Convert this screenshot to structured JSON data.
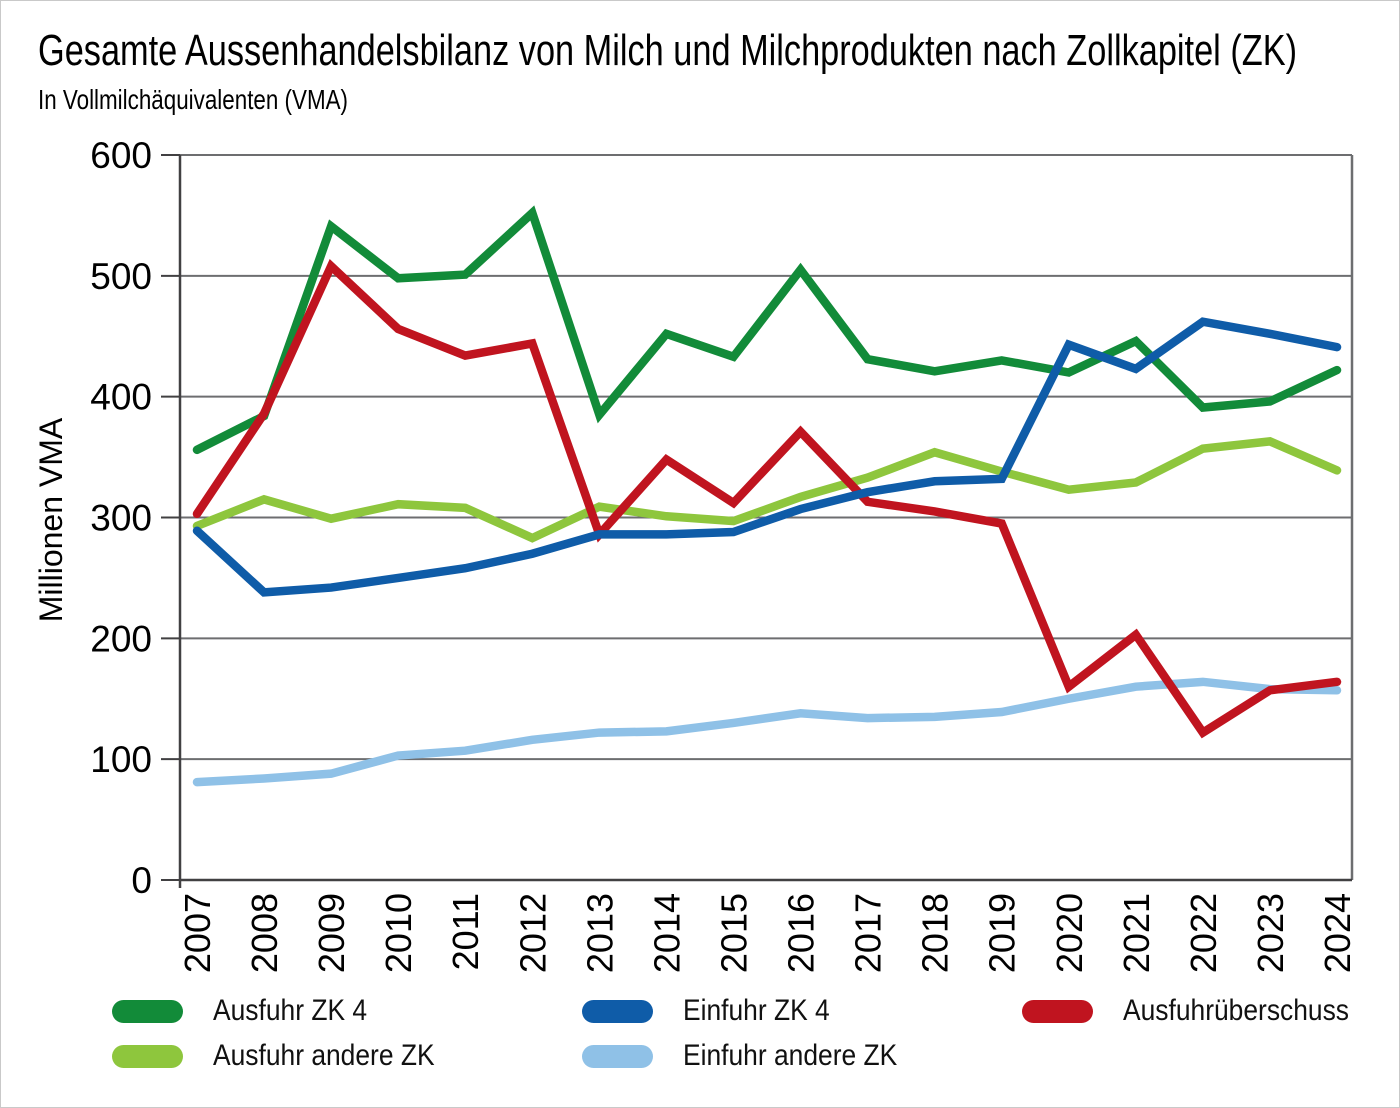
{
  "chart_data": {
    "type": "line",
    "title": "Gesamte Aussenhandelsbilanz von Milch und Milchprodukten nach Zollkapitel (ZK)",
    "subtitle": "In Vollmilchäquivalenten (VMA)",
    "ylabel": "Millionen VMA",
    "xlabel": "",
    "ylim": [
      0,
      600
    ],
    "yticks": [
      0,
      100,
      200,
      300,
      400,
      500,
      600
    ],
    "grid": true,
    "legend_position": "bottom",
    "x": [
      "2007",
      "2008",
      "2009",
      "2010",
      "2011",
      "2012",
      "2013",
      "2014",
      "2015",
      "2016",
      "2017",
      "2018",
      "2019",
      "2020",
      "2021",
      "2022",
      "2023",
      "2024"
    ],
    "series": [
      {
        "name": "Ausfuhr ZK 4",
        "color": "#128b39",
        "values": [
          356,
          384,
          541,
          498,
          501,
          552,
          385,
          452,
          433,
          505,
          431,
          421,
          430,
          420,
          446,
          391,
          396,
          422
        ]
      },
      {
        "name": "Ausfuhr andere ZK",
        "color": "#8ec63d",
        "values": [
          293,
          315,
          299,
          311,
          308,
          283,
          309,
          301,
          297,
          317,
          333,
          354,
          338,
          323,
          329,
          357,
          363,
          339
        ]
      },
      {
        "name": "Einfuhr ZK 4",
        "color": "#0f5ca8",
        "values": [
          289,
          238,
          242,
          250,
          258,
          270,
          286,
          286,
          288,
          307,
          321,
          330,
          332,
          443,
          423,
          462,
          452,
          441
        ]
      },
      {
        "name": "Einfuhr andere ZK",
        "color": "#8fc1e7",
        "values": [
          81,
          84,
          88,
          103,
          107,
          116,
          122,
          123,
          130,
          138,
          134,
          135,
          139,
          150,
          160,
          164,
          158,
          157
        ]
      },
      {
        "name": "Ausfuhrüberschuss",
        "color": "#c0141f",
        "values": [
          303,
          386,
          508,
          456,
          434,
          444,
          286,
          348,
          312,
          371,
          313,
          305,
          295,
          160,
          203,
          122,
          157,
          164
        ]
      }
    ]
  }
}
